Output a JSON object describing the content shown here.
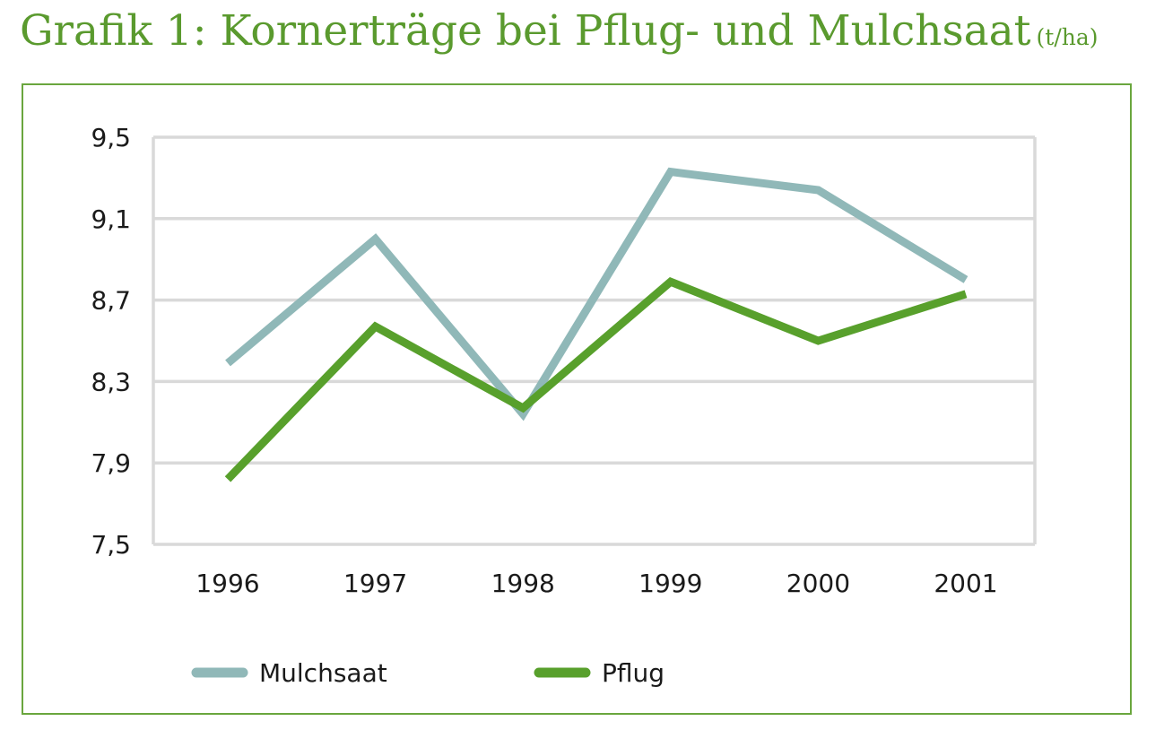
{
  "title": {
    "main": "Grafik 1: Kornerträge bei Pflug- und Mulchsaat",
    "unit": "(t/ha)"
  },
  "colors": {
    "title": "#5a9a2e",
    "frame": "#6aa63e",
    "grid": "#d9d9d9",
    "mulchsaat": "#90b8b8",
    "pflug": "#58a02c"
  },
  "chart_data": {
    "type": "line",
    "categories": [
      "1996",
      "1997",
      "1998",
      "1999",
      "2000",
      "2001"
    ],
    "series": [
      {
        "name": "Mulchsaat",
        "values": [
          8.39,
          9.0,
          8.14,
          9.33,
          9.24,
          8.8
        ]
      },
      {
        "name": "Pflug",
        "values": [
          7.82,
          8.57,
          8.17,
          8.79,
          8.5,
          8.73
        ]
      }
    ],
    "ylim": [
      7.5,
      9.5
    ],
    "yticks": [
      "7,5",
      "7,9",
      "8,3",
      "8,7",
      "9,1",
      "9,5"
    ],
    "ytick_values": [
      7.5,
      7.9,
      8.3,
      8.7,
      9.1,
      9.5
    ],
    "grid": true,
    "legend_position": "bottom-left",
    "xlabel": "",
    "ylabel": ""
  }
}
